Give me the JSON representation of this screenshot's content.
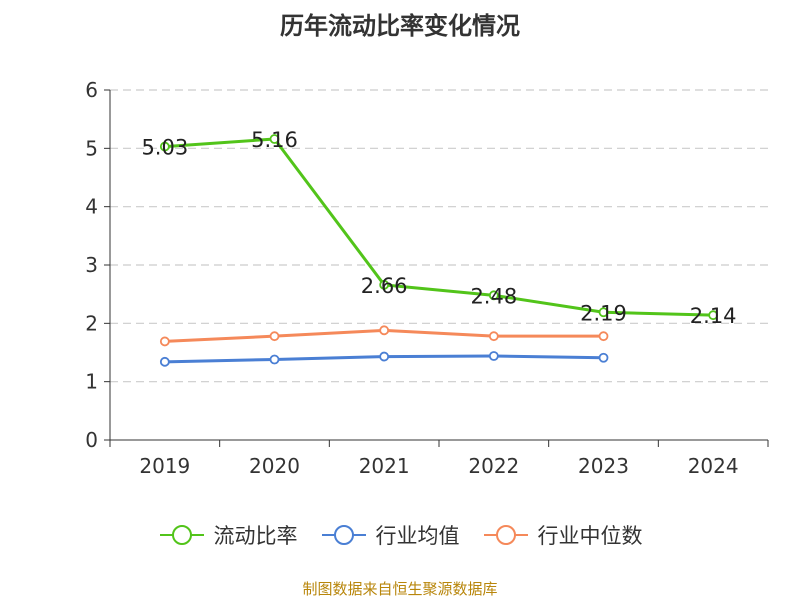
{
  "chart_data": {
    "type": "line",
    "title": "历年流动比率变化情况",
    "categories": [
      "2019",
      "2020",
      "2021",
      "2022",
      "2023",
      "2024"
    ],
    "ylim": [
      0,
      6
    ],
    "yticks": [
      "0",
      "1",
      "2",
      "3",
      "4",
      "5",
      "6"
    ],
    "grid": true,
    "legend_position": "bottom",
    "series": [
      {
        "name": "流动比率",
        "color": "#52c41a",
        "values": [
          5.03,
          5.16,
          2.66,
          2.48,
          2.19,
          2.14
        ],
        "labels": [
          "5.03",
          "5.16",
          "2.66",
          "2.48",
          "2.19",
          "2.14"
        ]
      },
      {
        "name": "行业均值",
        "color": "#4a7fd4",
        "values": [
          1.34,
          1.38,
          1.43,
          1.44,
          1.41,
          null
        ]
      },
      {
        "name": "行业中位数",
        "color": "#f5895a",
        "values": [
          1.69,
          1.78,
          1.88,
          1.78,
          1.78,
          null
        ]
      }
    ]
  },
  "source": "制图数据来自恒生聚源数据库"
}
